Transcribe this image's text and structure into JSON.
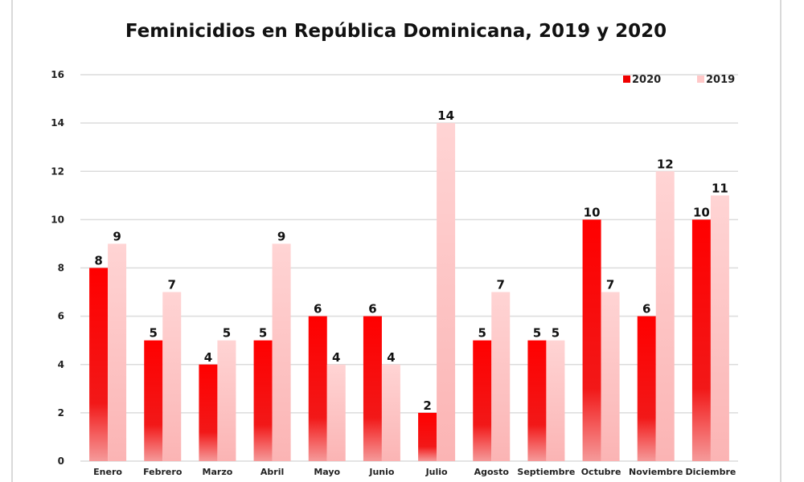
{
  "chart_data": {
    "type": "bar",
    "title": "Feminicidios en República Dominicana, 2019 y 2020",
    "xlabel": "",
    "ylabel": "",
    "ylim": [
      0,
      16
    ],
    "yticks": [
      0,
      2,
      4,
      6,
      8,
      10,
      12,
      14,
      16
    ],
    "grid": true,
    "legend_position": "top-right",
    "categories": [
      "Enero",
      "Febrero",
      "Marzo",
      "Abril",
      "Mayo",
      "Junio",
      "Julio",
      "Agosto",
      "Septiembre",
      "Octubre",
      "Noviembre",
      "Diciembre"
    ],
    "series": [
      {
        "name": "2020",
        "color": "#f00000",
        "values": [
          8,
          5,
          4,
          5,
          6,
          6,
          2,
          5,
          5,
          10,
          6,
          10
        ]
      },
      {
        "name": "2019",
        "color": "#ffc8c8",
        "values": [
          9,
          7,
          5,
          9,
          4,
          4,
          14,
          7,
          5,
          7,
          12,
          11
        ]
      }
    ]
  }
}
